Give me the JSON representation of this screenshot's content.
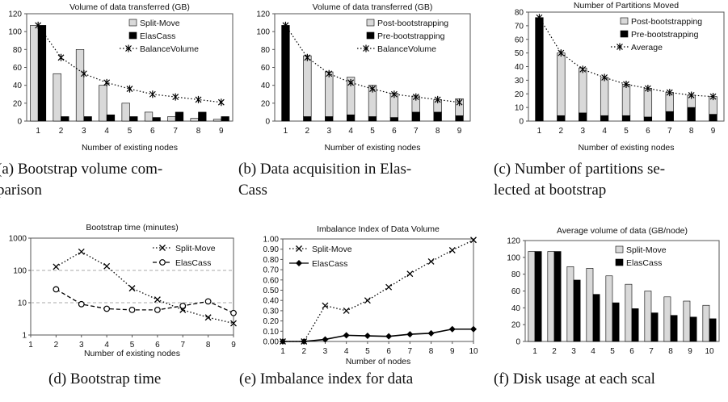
{
  "chart_data": [
    {
      "id": "a",
      "type": "bar",
      "title": "Volume of data transferred (GB)",
      "xlabel": "Number of existing nodes",
      "categories": [
        "1",
        "2",
        "3",
        "4",
        "5",
        "6",
        "7",
        "8",
        "9"
      ],
      "ylim": [
        0,
        120
      ],
      "yticks": [
        0,
        20,
        40,
        60,
        80,
        100,
        120
      ],
      "series": [
        {
          "name": "Split-Move",
          "kind": "bar",
          "color": "#d9d9d9",
          "values": [
            107,
            53,
            80,
            40,
            20,
            10,
            5,
            3,
            2
          ]
        },
        {
          "name": "ElasCass",
          "kind": "bar",
          "color": "#000000",
          "values": [
            107,
            5,
            5,
            7,
            5,
            4,
            10,
            10,
            5
          ]
        },
        {
          "name": "BalanceVolume",
          "kind": "line",
          "values": [
            107,
            71,
            53,
            43,
            36,
            30,
            27,
            24,
            21
          ]
        }
      ],
      "legend": "top-right",
      "caption": [
        "(a) Bootstrap volume com-",
        "parison"
      ]
    },
    {
      "id": "b",
      "type": "bar",
      "title": "Volume of data transferred (GB)",
      "xlabel": "Number of existing nodes",
      "categories": [
        "1",
        "2",
        "3",
        "4",
        "5",
        "6",
        "7",
        "8",
        "9"
      ],
      "ylim": [
        0,
        120
      ],
      "yticks": [
        0,
        20,
        40,
        60,
        80,
        100,
        120
      ],
      "series": [
        {
          "name": "Post-bootstrapping",
          "kind": "bar",
          "color": "#d9d9d9",
          "values": [
            0,
            68,
            50,
            42,
            35,
            27,
            18,
            14,
            19
          ]
        },
        {
          "name": "Pre-bootstrapping",
          "kind": "bar",
          "color": "#000000",
          "values": [
            107,
            5,
            5,
            7,
            5,
            4,
            10,
            10,
            6
          ]
        },
        {
          "name": "BalanceVolume",
          "kind": "line",
          "values": [
            107,
            71,
            53,
            43,
            36,
            30,
            27,
            24,
            21
          ]
        }
      ],
      "stacked": true,
      "legend": "top-right",
      "caption": [
        "(b) Data acquisition in Elas-",
        "Cass"
      ]
    },
    {
      "id": "c",
      "type": "bar",
      "title": "Number of Partitions Moved",
      "xlabel": "Number of existing nodes",
      "categories": [
        "1",
        "2",
        "3",
        "4",
        "5",
        "6",
        "7",
        "8",
        "9"
      ],
      "ylim": [
        0,
        80
      ],
      "yticks": [
        0,
        10,
        20,
        30,
        40,
        50,
        60,
        70,
        80
      ],
      "series": [
        {
          "name": "Post-bootstrapping",
          "kind": "bar",
          "color": "#d9d9d9",
          "values": [
            0,
            46,
            33,
            28,
            23,
            21,
            14,
            9,
            13
          ]
        },
        {
          "name": "Pre-bootstrapping",
          "kind": "bar",
          "color": "#000000",
          "values": [
            76,
            4,
            6,
            4,
            4,
            3,
            7,
            10,
            5
          ]
        },
        {
          "name": "Average",
          "kind": "line",
          "values": [
            76,
            50,
            38,
            32,
            27,
            24,
            21,
            19,
            18
          ]
        }
      ],
      "stacked": true,
      "legend": "top-right",
      "caption": [
        "(c) Number of partitions se-",
        "lected at bootstrap"
      ]
    },
    {
      "id": "d",
      "type": "line",
      "title": "Bootstrap time (minutes)",
      "xlabel": "Number of existing nodes",
      "xlim": [
        1,
        9
      ],
      "xticks": [
        1,
        2,
        3,
        4,
        5,
        6,
        7,
        8,
        9
      ],
      "yscale": "log",
      "ylim": [
        1,
        1000
      ],
      "yticks": [
        1,
        10,
        100,
        1000
      ],
      "grid": "dashed at 10 and 100",
      "series": [
        {
          "name": "Split-Move",
          "marker": "x",
          "x": [
            2,
            3,
            4,
            5,
            6,
            7,
            8,
            9
          ],
          "y": [
            130,
            380,
            135,
            28,
            12.5,
            6,
            3.5,
            2.3
          ]
        },
        {
          "name": "ElasCass",
          "marker": "o",
          "x": [
            2,
            3,
            4,
            5,
            6,
            7,
            8,
            9
          ],
          "y": [
            26,
            9,
            6.5,
            6,
            6,
            8,
            11,
            4.8
          ]
        }
      ],
      "legend": "top-right",
      "caption": [
        "(d) Bootstrap time"
      ]
    },
    {
      "id": "e",
      "type": "line",
      "title": "Imbalance Index of Data Volume",
      "xlabel": "Number of nodes",
      "xlim": [
        1,
        10
      ],
      "xticks": [
        1,
        2,
        3,
        4,
        5,
        6,
        7,
        8,
        9,
        10
      ],
      "ylim": [
        0,
        1
      ],
      "yticks": [
        "0.00",
        "0.10",
        "0.20",
        "0.30",
        "0.40",
        "0.50",
        "0.60",
        "0.70",
        "0.80",
        "0.90",
        "1.00"
      ],
      "series": [
        {
          "name": "Split-Move",
          "marker": "x",
          "x": [
            1,
            2,
            3,
            4,
            5,
            6,
            7,
            8,
            9,
            10
          ],
          "y": [
            0,
            0,
            0.35,
            0.3,
            0.4,
            0.53,
            0.66,
            0.78,
            0.89,
            0.99
          ]
        },
        {
          "name": "ElasCass",
          "marker": "diamond",
          "x": [
            1,
            2,
            3,
            4,
            5,
            6,
            7,
            8,
            9,
            10
          ],
          "y": [
            0,
            0,
            0.02,
            0.06,
            0.055,
            0.05,
            0.07,
            0.08,
            0.12,
            0.12
          ]
        }
      ],
      "legend": "top-left",
      "caption": [
        "(e) Imbalance index for data"
      ]
    },
    {
      "id": "f",
      "type": "bar",
      "title": "Average volume of data (GB/node)",
      "categories": [
        "1",
        "2",
        "3",
        "4",
        "5",
        "6",
        "7",
        "8",
        "9",
        "10"
      ],
      "ylim": [
        0,
        120
      ],
      "yticks": [
        0,
        20,
        40,
        60,
        80,
        100,
        120
      ],
      "series": [
        {
          "name": "Split-Move",
          "kind": "bar",
          "color": "#d9d9d9",
          "values": [
            107,
            107,
            89,
            87,
            78,
            68,
            60,
            53,
            48,
            43
          ]
        },
        {
          "name": "ElasCass",
          "kind": "bar",
          "color": "#000000",
          "values": [
            107,
            107,
            73,
            56,
            46,
            39,
            34,
            31,
            29,
            27
          ]
        }
      ],
      "legend": "top-right",
      "caption": [
        "(f) Disk usage at each scal"
      ]
    }
  ]
}
